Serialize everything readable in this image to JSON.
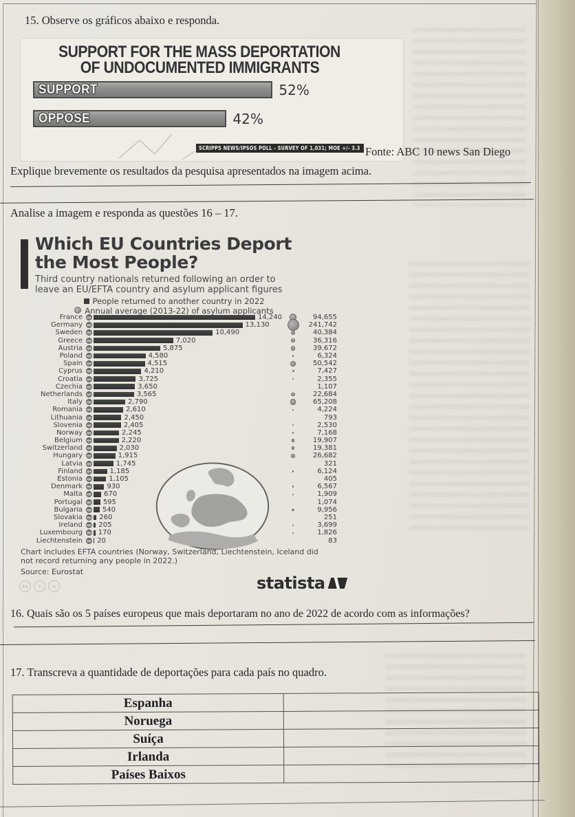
{
  "page": {
    "q15": "15. Observe os gráficos abaixo e responda.",
    "explain_prompt": "Explique brevemente os resultados da pesquisa apresentados na imagem acima.",
    "analise_prompt": "Analise a imagem e responda as questões 16 – 17.",
    "fonte": "Fonte: ABC 10 news San Diego",
    "q16": "16. Quais são os 5 países europeus que mais deportaram no ano de 2022 de acordo com as informações?",
    "q17": "17. Transcreva a quantidade de deportações para cada país no quadro."
  },
  "support_chart": {
    "title_line1": "SUPPORT FOR THE MASS DEPORTATION",
    "title_line2": "OF UNDOCUMENTED IMMIGRANTS",
    "banner": "SCRIPPS NEWS/IPSOS POLL - SURVEY OF 1,031; MOE +/- 3.3",
    "chart_data": {
      "type": "bar",
      "categories": [
        "SUPPORT",
        "OPPOSE"
      ],
      "values": [
        52,
        42
      ],
      "unit": "%",
      "title": "SUPPORT FOR THE MASS DEPORTATION OF UNDOCUMENTED IMMIGRANTS"
    }
  },
  "eu_chart": {
    "title_line1": "Which EU Countries Deport",
    "title_line2": "the Most People?",
    "subtitle_line1": "Third country nationals returned following an order to",
    "subtitle_line2": "leave an EU/EFTA country and asylum applicant figures",
    "legend_returned": "People returned to another country in 2022",
    "legend_asylum": "Annual average (2013-22) of asylum applicants",
    "footnote_line1": "Chart includes EFTA countries (Norway, Switzerland, Liechtenstein, Iceland did",
    "footnote_line2": "not record returning any people in 2022.)",
    "source": "Source: Eurostat",
    "logo_text": "statista",
    "chart_data": {
      "type": "bar",
      "title": "Which EU Countries Deport the Most People?",
      "categories": [
        "France",
        "Germany",
        "Sweden",
        "Greece",
        "Austria",
        "Poland",
        "Spain",
        "Cyprus",
        "Croatia",
        "Czechia",
        "Netherlands",
        "Italy",
        "Romania",
        "Lithuania",
        "Slovenia",
        "Norway",
        "Belgium",
        "Switzerland",
        "Hungary",
        "Latvia",
        "Finland",
        "Estonia",
        "Denmark",
        "Malta",
        "Portugal",
        "Bulgaria",
        "Slovakia",
        "Ireland",
        "Luxembourg",
        "Liechtenstein"
      ],
      "series": [
        {
          "name": "People returned to another country in 2022",
          "marker": "square",
          "values": [
            14240,
            13130,
            10490,
            7020,
            5875,
            4580,
            4515,
            4210,
            3725,
            3650,
            3565,
            2790,
            2610,
            2450,
            2405,
            2245,
            2220,
            2030,
            1915,
            1745,
            1185,
            1105,
            930,
            670,
            595,
            540,
            260,
            205,
            170,
            20
          ]
        },
        {
          "name": "Annual average (2013-22) of asylum applicants",
          "marker": "circle",
          "values": [
            94655,
            241742,
            40384,
            36316,
            39672,
            6324,
            50542,
            7427,
            2355,
            1107,
            22684,
            65208,
            4224,
            793,
            2530,
            7168,
            19907,
            19381,
            26682,
            321,
            6124,
            405,
            6567,
            1909,
            1074,
            9956,
            251,
            3699,
            1826,
            83
          ]
        }
      ],
      "legend_position": "top",
      "grid": false
    }
  },
  "quadro": {
    "rows": [
      {
        "country": "Espanha",
        "value": ""
      },
      {
        "country": "Noruega",
        "value": ""
      },
      {
        "country": "Suíça",
        "value": ""
      },
      {
        "country": "Irlanda",
        "value": ""
      },
      {
        "country": "Países Baixos",
        "value": ""
      }
    ]
  },
  "colors": {
    "page_bg": "#e8e5df",
    "scan_edge": "#cdc6b0",
    "ink": "#2c2c2f",
    "bar_dark": "#3a3a3a",
    "bubble_gray": "#8f8f8d",
    "banner_bg": "#2b2b2a"
  }
}
